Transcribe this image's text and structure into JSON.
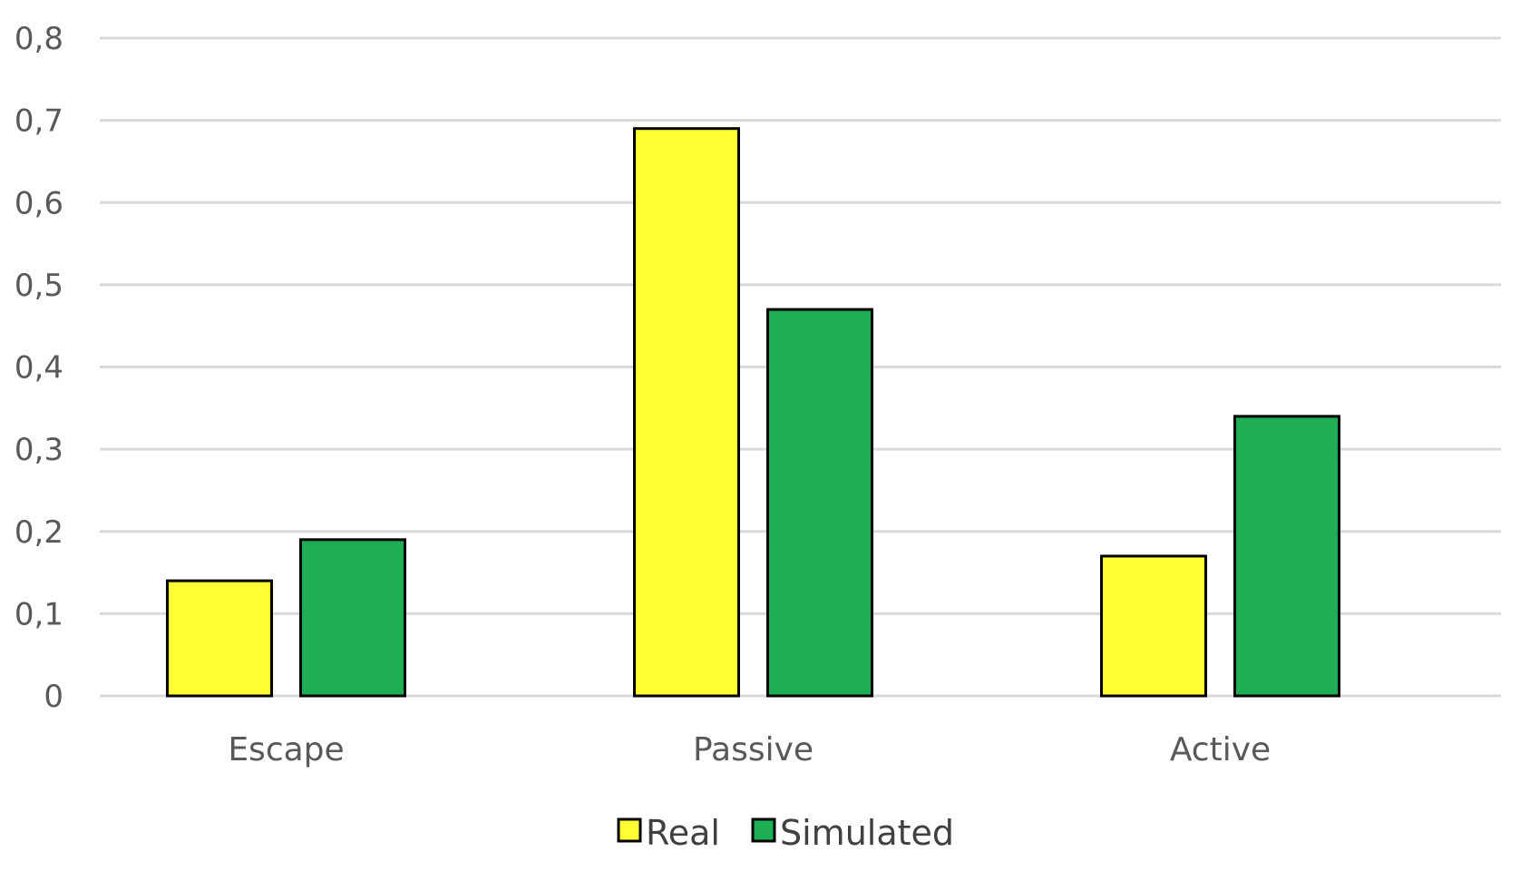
{
  "chart_data": {
    "type": "bar",
    "categories": [
      "Escape",
      "Passive",
      "Active"
    ],
    "series": [
      {
        "name": "Real",
        "values": [
          0.14,
          0.69,
          0.17
        ],
        "color": "#FFFF33"
      },
      {
        "name": "Simulated",
        "values": [
          0.19,
          0.47,
          0.34
        ],
        "color": "#1EAF55"
      }
    ],
    "yticks": [
      0,
      0.1,
      0.2,
      0.3,
      0.4,
      0.5,
      0.6,
      0.7,
      0.8
    ],
    "ytick_labels": [
      "0",
      "0,1",
      "0,2",
      "0,3",
      "0,4",
      "0,5",
      "0,6",
      "0,7",
      "0,8"
    ],
    "ylim": [
      0,
      0.8
    ],
    "grid": true,
    "legend_position": "bottom"
  }
}
